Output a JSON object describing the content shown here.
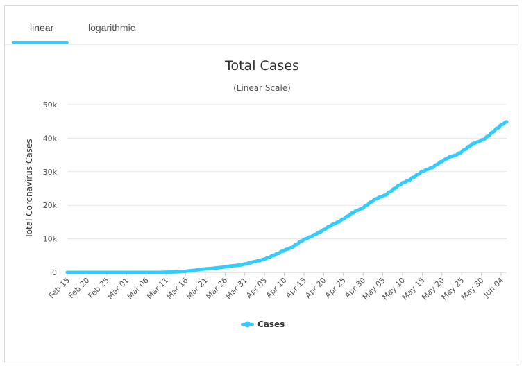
{
  "tabs": [
    {
      "label": "linear",
      "active": true
    },
    {
      "label": "logarithmic",
      "active": false
    }
  ],
  "colors": {
    "series": "#33ccff",
    "accent": "#33ccff"
  },
  "chart_data": {
    "type": "line",
    "title": "Total Cases",
    "subtitle": "(Linear Scale)",
    "ylabel": "Total Coronavirus Cases",
    "xlabel": "",
    "ylim": [
      0,
      50000
    ],
    "yticks": [
      0,
      10000,
      20000,
      30000,
      40000,
      50000
    ],
    "ytick_labels": [
      "0",
      "10k",
      "20k",
      "30k",
      "40k",
      "50k"
    ],
    "xtick_labels": [
      "Feb 15",
      "Feb 20",
      "Feb 25",
      "Mar 01",
      "Mar 06",
      "Mar 11",
      "Mar 16",
      "Mar 21",
      "Mar 26",
      "Mar 31",
      "Apr 05",
      "Apr 10",
      "Apr 15",
      "Apr 20",
      "Apr 25",
      "Apr 30",
      "May 05",
      "May 10",
      "May 15",
      "May 20",
      "May 25",
      "May 30",
      "Jun 04"
    ],
    "legend_position": "bottom-center",
    "grid": true,
    "series": [
      {
        "name": "Cases",
        "values": [
          0,
          0,
          0,
          0,
          0,
          0,
          0,
          0,
          0,
          0,
          0,
          0,
          0,
          0,
          0,
          0,
          0,
          0,
          0,
          0,
          10,
          50,
          100,
          150,
          200,
          300,
          450,
          600,
          800,
          1000,
          1100,
          1200,
          1350,
          1500,
          1700,
          1900,
          2050,
          2200,
          2500,
          2800,
          3200,
          3500,
          3900,
          4400,
          5000,
          5600,
          6300,
          6900,
          7400,
          8300,
          9300,
          10000,
          10600,
          11300,
          12000,
          12800,
          13700,
          14400,
          15000,
          15900,
          16800,
          17700,
          18500,
          19000,
          20000,
          21000,
          21900,
          22500,
          23000,
          24000,
          25000,
          26000,
          26800,
          27400,
          28300,
          29200,
          30100,
          30700,
          31200,
          32100,
          33000,
          33800,
          34500,
          34900,
          35600,
          36600,
          37600,
          38500,
          39000,
          39600,
          40600,
          41800,
          43000,
          44100,
          44900
        ]
      }
    ]
  }
}
